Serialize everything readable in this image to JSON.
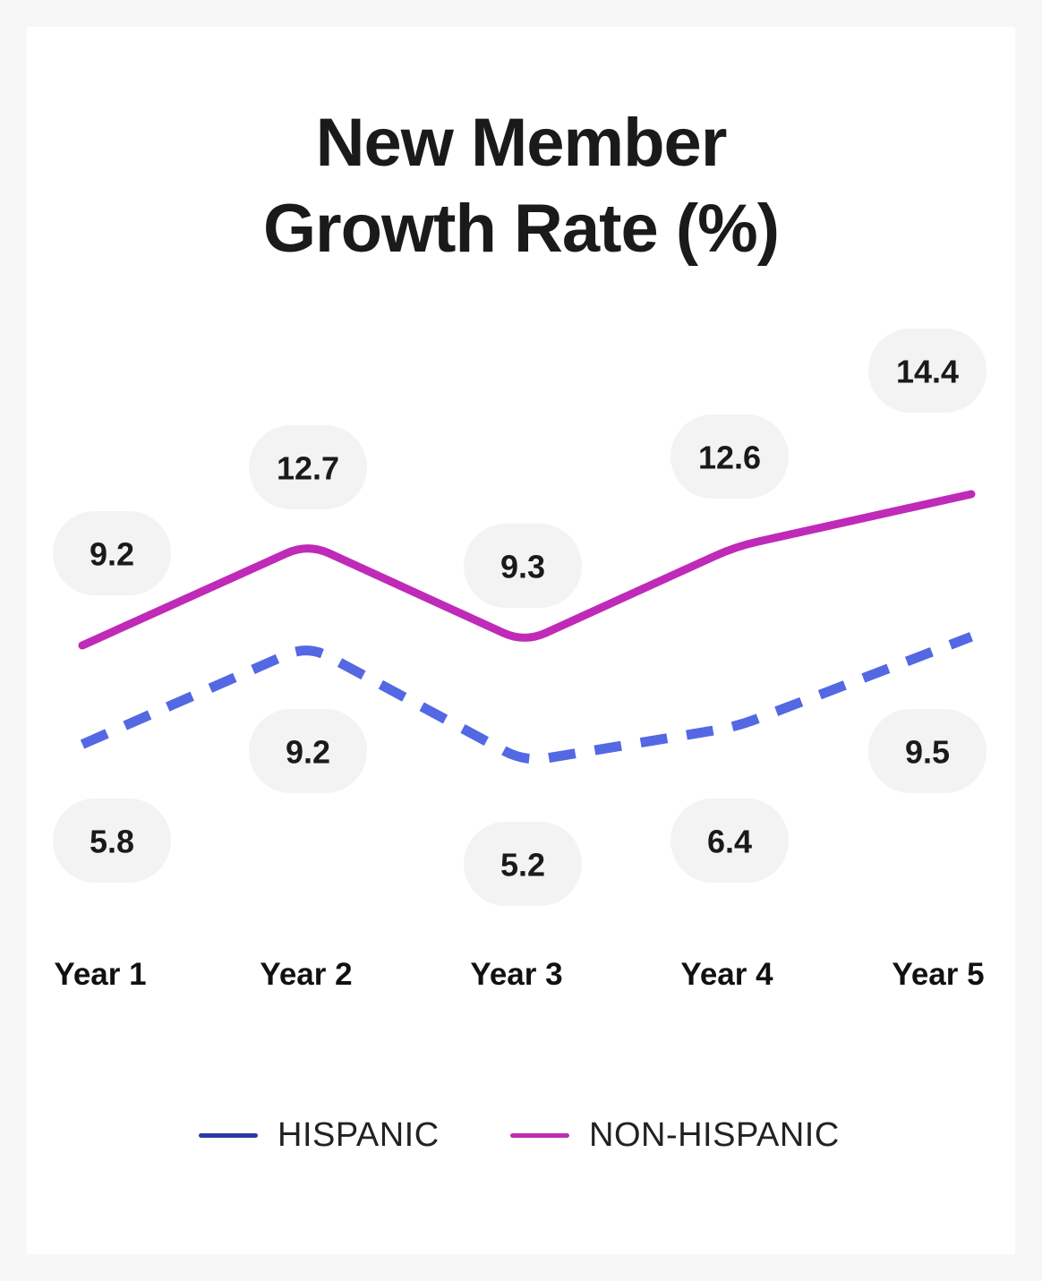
{
  "title_lines": [
    "New Member",
    "Growth Rate (%)"
  ],
  "colors": {
    "hispanic": "#5468e3",
    "non_hispanic": "#c02ab8",
    "legend_hispanic": "#2c3aa5",
    "pill": "#f3f3f3"
  },
  "chart_data": {
    "type": "line",
    "title": "New Member Growth Rate (%)",
    "categories": [
      "Year 1",
      "Year 2",
      "Year 3",
      "Year 4",
      "Year 5"
    ],
    "series": [
      {
        "name": "HISPANIC",
        "values": [
          5.8,
          9.2,
          5.2,
          6.4,
          9.5
        ],
        "line_style": "dashed"
      },
      {
        "name": "NON-HISPANIC",
        "values": [
          9.2,
          12.7,
          9.3,
          12.6,
          14.4
        ],
        "line_style": "solid"
      }
    ],
    "xlabel": "",
    "ylabel": "",
    "ylim": [
      4,
      16
    ],
    "grid": false,
    "legend": "bottom"
  },
  "legend": {
    "hispanic": "HISPANIC",
    "non_hispanic": "NON-HISPANIC"
  }
}
